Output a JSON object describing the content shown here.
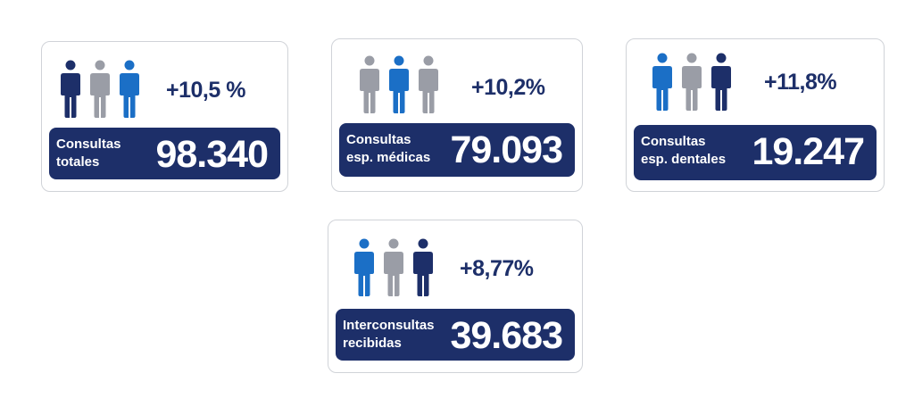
{
  "colors": {
    "navy": "#1d2f69",
    "blue": "#1b6fc6",
    "gray": "#9a9da6",
    "card_border": "#d0d3d8"
  },
  "cards": [
    {
      "growth": "+10,5 %",
      "label_line1": "Consultas",
      "label_line2": "totales",
      "value": "98.340",
      "figures": [
        "navy",
        "gray",
        "blue"
      ]
    },
    {
      "growth": "+10,2%",
      "label_line1": "Consultas",
      "label_line2": "esp. médicas",
      "value": "79.093",
      "figures": [
        "gray",
        "blue",
        "gray"
      ]
    },
    {
      "growth": "+11,8%",
      "label_line1": "Consultas",
      "label_line2": "esp. dentales",
      "value": "19.247",
      "figures": [
        "blue",
        "gray",
        "navy"
      ]
    },
    {
      "growth": "+8,77%",
      "label_line1": "Interconsultas",
      "label_line2": "recibidas",
      "value": "39.683",
      "figures": [
        "blue",
        "gray",
        "navy"
      ]
    }
  ]
}
